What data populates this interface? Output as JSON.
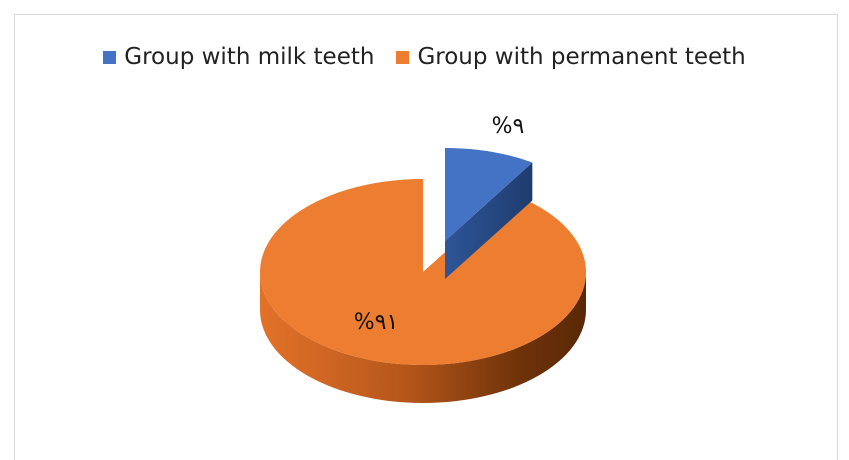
{
  "chart_data": {
    "type": "pie",
    "style": "3d-exploded",
    "title": "",
    "categories": [
      "Group with milk teeth",
      "Group with permanent teeth"
    ],
    "values": [
      9,
      91
    ],
    "data_labels": [
      "%٩",
      "%٩١"
    ],
    "colors": [
      "#4472C4",
      "#ED7D31"
    ],
    "legend_position": "top"
  },
  "legend": {
    "items": [
      {
        "label": "Group with milk teeth",
        "color": "#4472C4"
      },
      {
        "label": "Group with permanent teeth",
        "color": "#ED7D31"
      }
    ]
  },
  "labels": {
    "milk": "%٩",
    "permanent": "%٩١"
  }
}
